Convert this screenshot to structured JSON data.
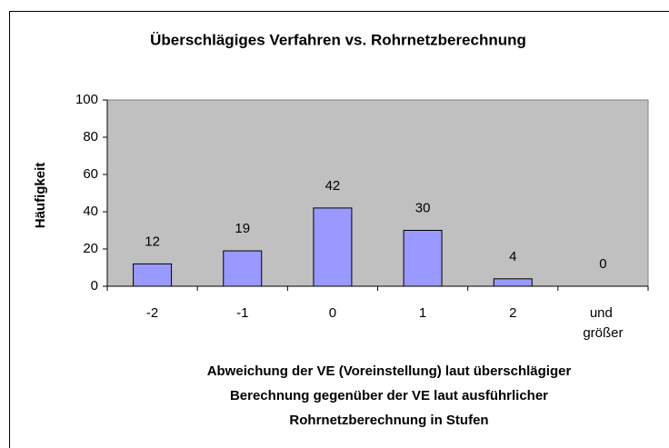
{
  "chart_data": {
    "type": "bar",
    "title": "Überschlägiges Verfahren vs. Rohrnetzberechnung",
    "x_label": [
      "Abweichung der VE (Voreinstellung) laut überschlägiger",
      "Berechnung gegenüber der VE laut ausführlicher",
      "Rohrnetzberechnung in Stufen"
    ],
    "y_label": "Häufigkeit",
    "categories": [
      "-2",
      "-1",
      "0",
      "1",
      "2",
      "und größer"
    ],
    "values": [
      12,
      19,
      42,
      30,
      4,
      0
    ],
    "color": "#9999ff",
    "ylim": [
      0,
      100
    ],
    "yticks": [
      0,
      20,
      40,
      60,
      80,
      100
    ],
    "grid": false
  }
}
